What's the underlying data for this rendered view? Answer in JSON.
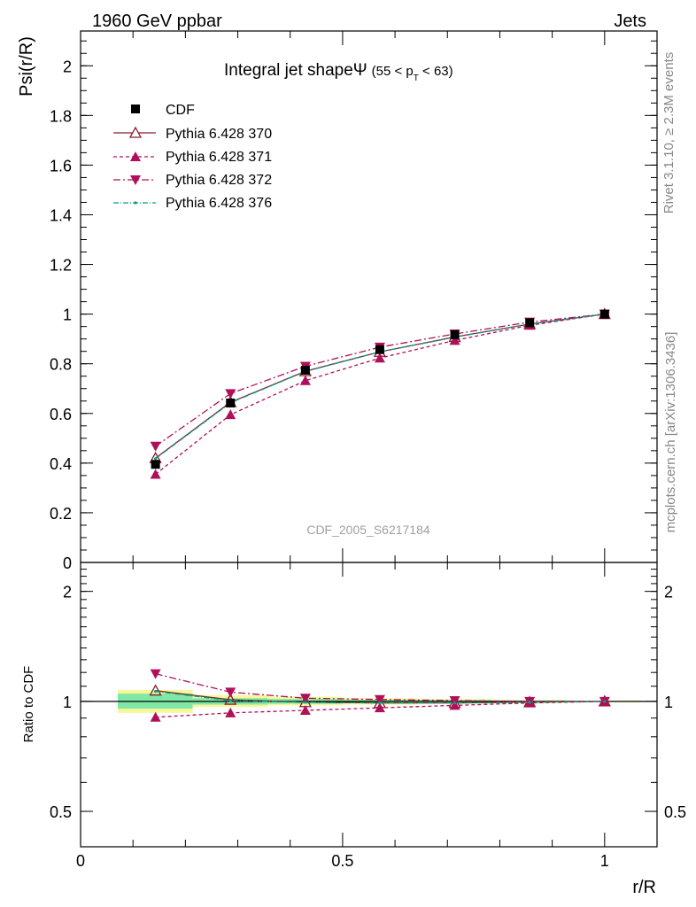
{
  "header": {
    "energy_label": "1960 GeV ppbar",
    "process_label": "Jets"
  },
  "side_labels": {
    "rivet": "Rivet 3.1.10, ≥ 2.3M events",
    "source": "mcplots.cern.ch [arXiv:1306.3436]"
  },
  "colors": {
    "cdf": "#000000",
    "py370": "#8b1a2b",
    "py371": "#b0105a",
    "py372": "#b0105a",
    "py376": "#00a080",
    "band_inner": "#7fe8a6",
    "band_outer": "#f7f79a"
  },
  "chart_data": [
    {
      "type": "line",
      "panel": "main",
      "title": "Integral jet shapeΨ",
      "title_suffix": "(55 < p",
      "title_sub": "T",
      "title_end": " < 63)",
      "ylabel": "Psi(r/R)",
      "xlabel": "",
      "watermark": "CDF_2005_S6217184",
      "xlim": [
        0,
        1.1
      ],
      "ylim": [
        0,
        2.14
      ],
      "yticks": [
        0,
        0.2,
        0.4,
        0.6,
        0.8,
        1,
        1.2,
        1.4,
        1.6,
        1.8,
        2
      ],
      "ytick_labels": [
        "0",
        "0.2",
        "0.4",
        "0.6",
        "0.8",
        "1",
        "1.2",
        "1.4",
        "1.6",
        "1.8",
        "2"
      ],
      "x": [
        0.143,
        0.286,
        0.429,
        0.571,
        0.714,
        0.857,
        1.0
      ],
      "series": [
        {
          "name": "CDF",
          "key": "cdf",
          "values": [
            0.395,
            0.642,
            0.774,
            0.857,
            0.917,
            0.965,
            1.0
          ]
        },
        {
          "name": "Pythia 6.428 370",
          "key": "py370",
          "values": [
            0.42,
            0.645,
            0.77,
            0.848,
            0.908,
            0.96,
            1.0
          ]
        },
        {
          "name": "Pythia 6.428 371",
          "key": "py371",
          "values": [
            0.355,
            0.595,
            0.732,
            0.823,
            0.894,
            0.955,
            1.0
          ]
        },
        {
          "name": "Pythia 6.428 372",
          "key": "py372",
          "values": [
            0.468,
            0.68,
            0.79,
            0.867,
            0.92,
            0.968,
            1.0
          ]
        },
        {
          "name": "Pythia 6.428 376",
          "key": "py376",
          "values": [
            0.418,
            0.643,
            0.769,
            0.848,
            0.907,
            0.96,
            1.0
          ]
        }
      ]
    },
    {
      "type": "line",
      "panel": "ratio",
      "ylabel": "Ratio to CDF",
      "xlabel": "r/R",
      "xlim": [
        0,
        1.1
      ],
      "ylim": [
        0.4,
        2.4
      ],
      "scale": "log",
      "yticks": [
        0.5,
        1,
        2
      ],
      "ytick_labels": [
        "0.5",
        "1",
        "2"
      ],
      "xticks": [
        0,
        0.5,
        1
      ],
      "xtick_labels": [
        "0",
        "0.5",
        "1"
      ],
      "x": [
        0.143,
        0.286,
        0.429,
        0.571,
        0.714,
        0.857,
        1.0
      ],
      "bins": [
        [
          0.071,
          0.214
        ],
        [
          0.214,
          0.357
        ],
        [
          0.357,
          0.5
        ],
        [
          0.5,
          0.643
        ],
        [
          0.643,
          0.786
        ],
        [
          0.786,
          0.929
        ],
        [
          0.929,
          1.071
        ]
      ],
      "band_inner": [
        [
          0.955,
          1.05
        ],
        [
          0.98,
          1.02
        ],
        [
          0.985,
          1.015
        ],
        [
          0.99,
          1.01
        ],
        [
          0.992,
          1.008
        ],
        [
          0.995,
          1.005
        ],
        [
          0.998,
          1.002
        ]
      ],
      "band_outer": [
        [
          0.93,
          1.075
        ],
        [
          0.965,
          1.04
        ],
        [
          0.975,
          1.03
        ],
        [
          0.98,
          1.02
        ],
        [
          0.985,
          1.015
        ],
        [
          0.99,
          1.01
        ],
        [
          0.995,
          1.005
        ]
      ],
      "series": [
        {
          "name": "Pythia 6.428 370",
          "key": "py370",
          "values": [
            1.07,
            1.01,
            0.995,
            0.99,
            0.99,
            0.995,
            1.0
          ]
        },
        {
          "name": "Pythia 6.428 371",
          "key": "py371",
          "values": [
            0.905,
            0.93,
            0.945,
            0.96,
            0.975,
            0.99,
            1.0
          ]
        },
        {
          "name": "Pythia 6.428 372",
          "key": "py372",
          "values": [
            1.19,
            1.06,
            1.02,
            1.012,
            1.005,
            1.0,
            1.0
          ]
        },
        {
          "name": "Pythia 6.428 376",
          "key": "py376",
          "values": [
            1.065,
            1.005,
            0.995,
            0.99,
            0.99,
            0.995,
            1.0
          ]
        }
      ]
    }
  ]
}
